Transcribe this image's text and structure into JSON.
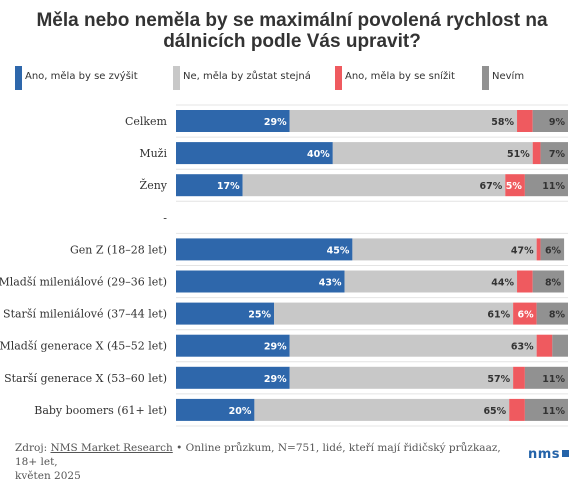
{
  "title_line1": "Měla nebo neměla by se maximální povolená rychlost na",
  "title_line2": "dálnicích podle Vás upravit?",
  "colors": {
    "increase": "#2e67ab",
    "same": "#c8c8c8",
    "decrease": "#ef5a5f",
    "dontknow": "#919191"
  },
  "chart_data": {
    "type": "bar",
    "stacked": true,
    "orientation": "horizontal",
    "xlim": [
      0,
      100
    ],
    "categories": [
      "Celkem",
      "Muži",
      "Ženy",
      "-",
      "Gen Z (18–28 let)",
      "Mladší mileniálové (29–36 let)",
      "Starší mileniálové (37–44 let)",
      "Mladší generace X (45–52 let)",
      "Starší generace X (53–60 let)",
      "Baby boomers (61+ let)"
    ],
    "series": [
      {
        "name": "Ano, měla by se zvýšit",
        "key": "increase",
        "values": [
          29,
          40,
          17,
          null,
          45,
          43,
          25,
          29,
          29,
          20
        ],
        "labels": [
          "29%",
          "40%",
          "17%",
          "",
          "45%",
          "43%",
          "25%",
          "29%",
          "29%",
          "20%"
        ]
      },
      {
        "name": "Ne, měla by zůstat stejná",
        "key": "same",
        "values": [
          58,
          51,
          67,
          null,
          47,
          44,
          61,
          63,
          57,
          65
        ],
        "labels": [
          "58%",
          "51%",
          "67%",
          "",
          "47%",
          "44%",
          "61%",
          "63%",
          "57%",
          "65%"
        ]
      },
      {
        "name": "Ano, měla by se snížit",
        "key": "decrease",
        "values": [
          4,
          2,
          5,
          null,
          1,
          4,
          6,
          4,
          3,
          4
        ],
        "labels": [
          "",
          "",
          "5%",
          "",
          "",
          "",
          "6%",
          "",
          "",
          ""
        ]
      },
      {
        "name": "Nevím",
        "key": "dontknow",
        "values": [
          9,
          7,
          11,
          null,
          6,
          8,
          8,
          4,
          11,
          11
        ],
        "labels": [
          "9%",
          "7%",
          "11%",
          "",
          "6%",
          "8%",
          "8%",
          "",
          "11%",
          "11%"
        ]
      }
    ]
  },
  "footer": {
    "prefix": "Zdroj: ",
    "source_link": "NMS Market Research",
    "suffix": " • Online průzkum, N=751, lidé, kteří mají řidičský průzkaaz, 18+ let,",
    "line2": "květen 2025"
  },
  "logo": "nms"
}
